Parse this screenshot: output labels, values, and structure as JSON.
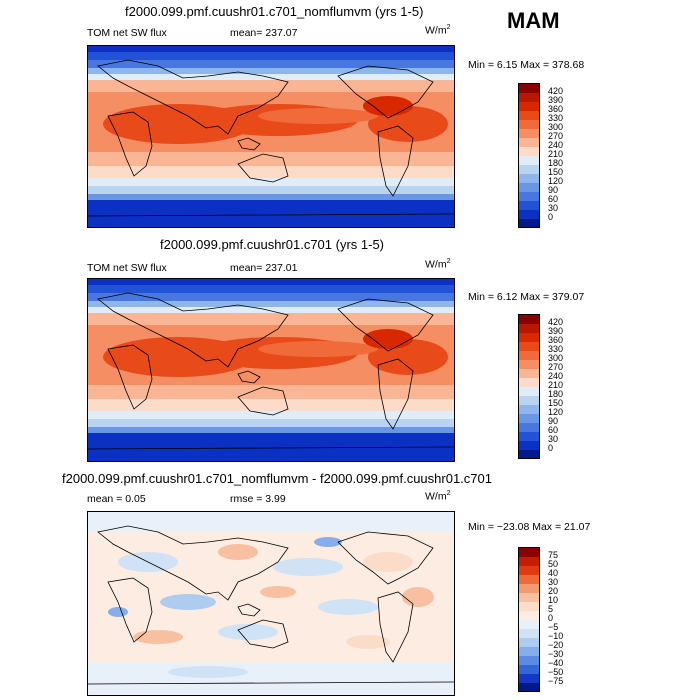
{
  "season": "MAM",
  "units": "W/m",
  "units_sup": "2",
  "panels": [
    {
      "title": "f2000.099.pmf.cuushr01.c701_nomflumvm (yrs 1-5)",
      "field_label": "TOM net SW flux",
      "mean_label": "mean= 237.07",
      "minmax": "Min =   6.15 Max = 378.68",
      "colorbar_labels": [
        "420",
        "390",
        "360",
        "330",
        "300",
        "270",
        "240",
        "210",
        "180",
        "150",
        "120",
        "90",
        "60",
        "30",
        "0"
      ],
      "colorbar_colors": [
        "#8b0000",
        "#b81800",
        "#d82800",
        "#e84a1a",
        "#f06a3a",
        "#f58e63",
        "#f9b594",
        "#fcdcc8",
        "#e0ecf8",
        "#b8d4f0",
        "#8fb6ec",
        "#6a96e6",
        "#4877e0",
        "#2252d6",
        "#0a30c4",
        "#001a8c"
      ]
    },
    {
      "title": "f2000.099.pmf.cuushr01.c701 (yrs 1-5)",
      "field_label": "TOM net SW flux",
      "mean_label": "mean= 237.01",
      "minmax": "Min =   6.12 Max = 379.07",
      "colorbar_labels": [
        "420",
        "390",
        "360",
        "330",
        "300",
        "270",
        "240",
        "210",
        "180",
        "150",
        "120",
        "90",
        "60",
        "30",
        "0"
      ],
      "colorbar_colors": [
        "#8b0000",
        "#b81800",
        "#d82800",
        "#e84a1a",
        "#f06a3a",
        "#f58e63",
        "#f9b594",
        "#fcdcc8",
        "#e0ecf8",
        "#b8d4f0",
        "#8fb6ec",
        "#6a96e6",
        "#4877e0",
        "#2252d6",
        "#0a30c4",
        "#001a8c"
      ]
    },
    {
      "title": "f2000.099.pmf.cuushr01.c701_nomflumvm - f2000.099.pmf.cuushr01.c701",
      "field_label": "",
      "mean_label": "mean =   0.05",
      "rmse_label": "rmse =   3.99",
      "minmax": "Min = −23.08 Max =  21.07",
      "colorbar_labels": [
        "75",
        "50",
        "40",
        "30",
        "20",
        "10",
        "5",
        "0",
        "−5",
        "−10",
        "−20",
        "−30",
        "−40",
        "−50",
        "−75"
      ],
      "colorbar_colors": [
        "#8b0000",
        "#c41e00",
        "#e03a10",
        "#ee6a3a",
        "#f49a70",
        "#f8c0a0",
        "#fbdcc8",
        "#fdece2",
        "#e8f0fa",
        "#d0e2f6",
        "#aecbf0",
        "#86aeea",
        "#5c8ce2",
        "#3566d8",
        "#1238c4",
        "#001a8c"
      ]
    }
  ]
}
